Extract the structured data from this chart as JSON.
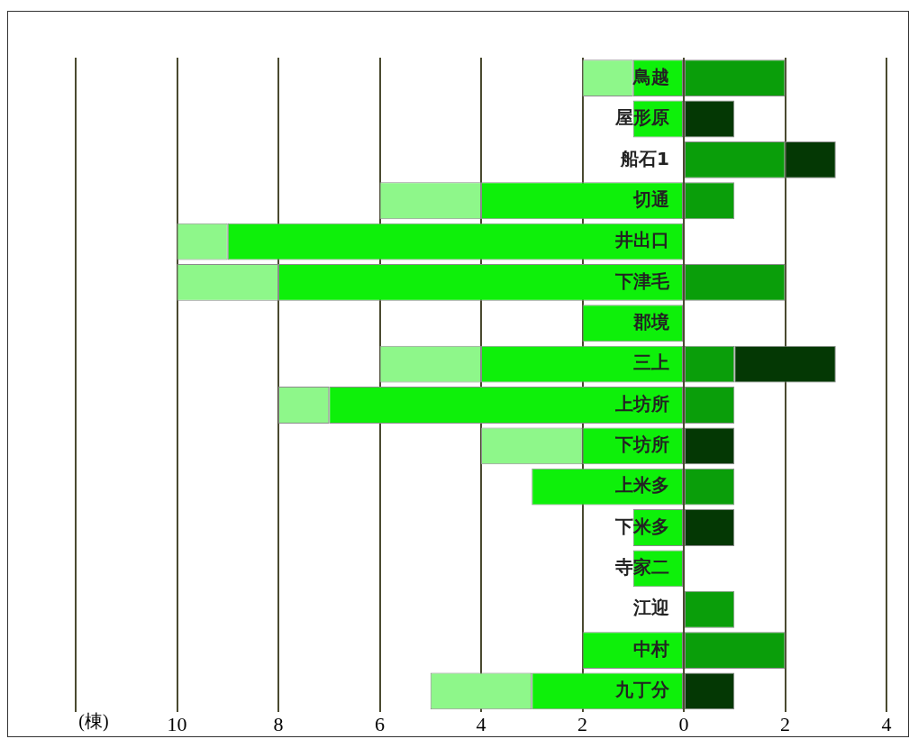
{
  "chart_data": {
    "type": "bar",
    "orientation": "horizontal",
    "stacked": true,
    "xlabel": "(棟)",
    "categories": [
      "鳥越",
      "屋形原",
      "船石1",
      "切通",
      "井出口",
      "下津毛",
      "郡境",
      "三上",
      "上坊所",
      "下坊所",
      "上米多",
      "下米多",
      "寺家二",
      "江迎",
      "中村",
      "九丁分"
    ],
    "series": [
      {
        "color": "#0ef00a",
        "values": [
          -1,
          -1,
          null,
          -4,
          -9,
          -8,
          -2,
          -4,
          -7,
          -2,
          -3,
          -1,
          -1,
          null,
          -2,
          -3
        ]
      },
      {
        "color": "#8ef78a",
        "values": [
          -1,
          null,
          null,
          -2,
          -1,
          -2,
          null,
          -2,
          -1,
          -2,
          null,
          null,
          null,
          null,
          null,
          -2
        ]
      },
      {
        "color": "#0a9e0a",
        "values": [
          2,
          null,
          2,
          1,
          null,
          2,
          null,
          1,
          1,
          null,
          1,
          null,
          null,
          1,
          2,
          null
        ]
      },
      {
        "color": "#043804",
        "values": [
          null,
          1,
          1,
          null,
          null,
          null,
          null,
          2,
          null,
          1,
          null,
          1,
          null,
          null,
          null,
          1
        ]
      }
    ],
    "xlim": [
      -12,
      4
    ],
    "xticks": [
      {
        "value": -12,
        "label": null
      },
      {
        "value": -10,
        "label": "10"
      },
      {
        "value": -8,
        "label": "8"
      },
      {
        "value": -6,
        "label": "6"
      },
      {
        "value": -4,
        "label": "4"
      },
      {
        "value": -2,
        "label": "2"
      },
      0,
      2,
      4
    ],
    "grid": "x",
    "legend": false
  }
}
